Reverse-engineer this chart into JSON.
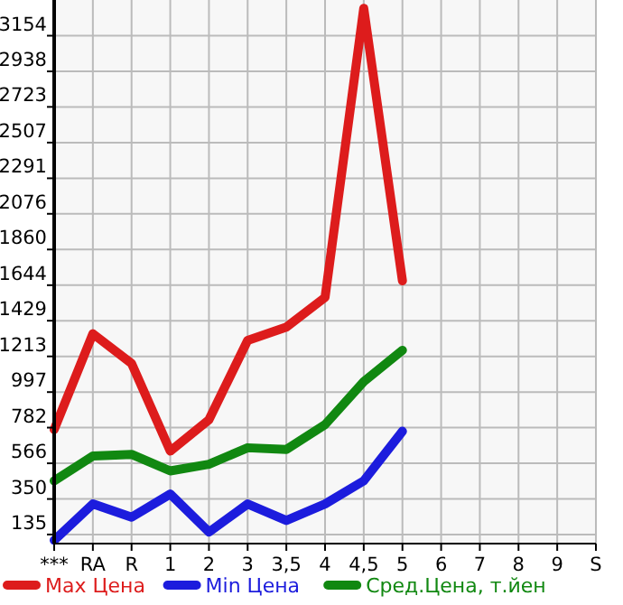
{
  "chart_data": {
    "type": "line",
    "categories": [
      "***",
      "RA",
      "R",
      "1",
      "2",
      "3",
      "3,5",
      "4",
      "4,5",
      "5",
      "6",
      "7",
      "8",
      "9",
      "S"
    ],
    "series": [
      {
        "name": "Max Цена",
        "color": "#dd1c1c",
        "values": [
          770,
          1350,
          1170,
          640,
          830,
          1310,
          1390,
          1570,
          3320,
          1670,
          null,
          null,
          null,
          null,
          null
        ]
      },
      {
        "name": "Min Цена",
        "color": "#1c1cdd",
        "values": [
          100,
          320,
          240,
          380,
          150,
          320,
          220,
          320,
          460,
          760,
          null,
          null,
          null,
          null,
          null
        ]
      },
      {
        "name": "Сред.Цена, т.йен",
        "color": "#118811",
        "values": [
          460,
          610,
          620,
          520,
          560,
          660,
          650,
          800,
          1060,
          1250,
          null,
          null,
          null,
          null,
          null
        ]
      }
    ],
    "ylim": [
      80,
      3370
    ],
    "yticks": [
      135,
      350,
      566,
      782,
      997,
      1213,
      1429,
      1644,
      1860,
      2076,
      2291,
      2507,
      2723,
      2938,
      3154
    ],
    "grid": true,
    "legend": "bottom",
    "marker": "none",
    "line_style": "solid"
  }
}
